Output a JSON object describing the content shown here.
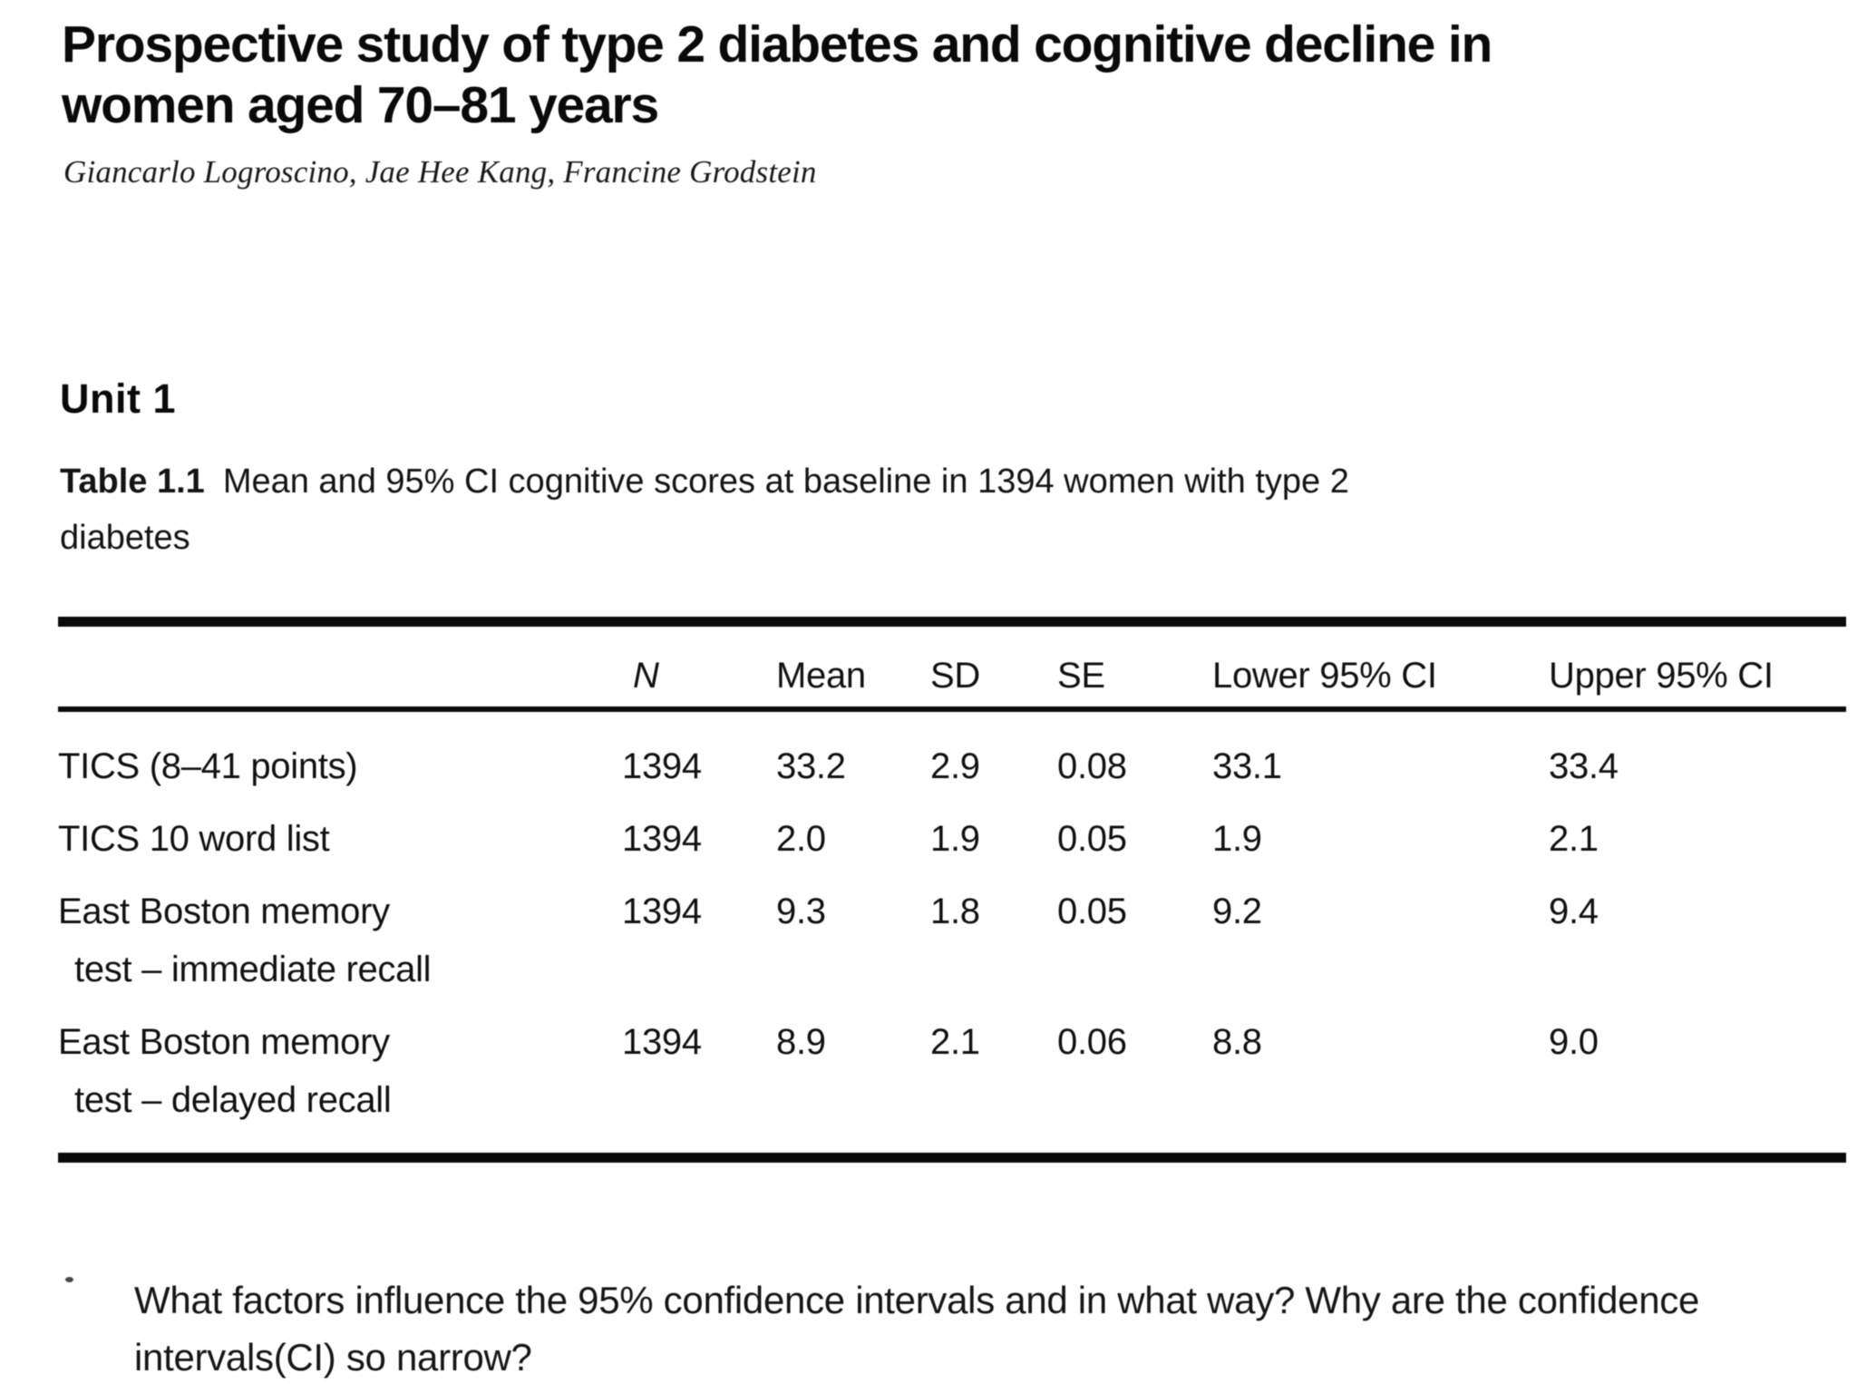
{
  "title_lines": [
    "Prospective study of type 2 diabetes and cognitive decline in",
    "women aged 70–81 years"
  ],
  "authors": "Giancarlo Logroscino, Jae Hee Kang, Francine Grodstein",
  "unit_heading": "Unit 1",
  "table": {
    "caption_label": "Table 1.1",
    "caption_text": "Mean and 95% CI cognitive scores at baseline in 1394 women with type 2 diabetes",
    "columns": [
      "",
      "N",
      "Mean",
      "SD",
      "SE",
      "Lower 95% CI",
      "Upper 95% CI"
    ],
    "rows": [
      {
        "label": "TICS (8–41 points)",
        "label2": "",
        "n": "1394",
        "mean": "33.2",
        "sd": "2.9",
        "se": "0.08",
        "lower": "33.1",
        "upper": "33.4"
      },
      {
        "label": "TICS 10 word list",
        "label2": "",
        "n": "1394",
        "mean": "2.0",
        "sd": "1.9",
        "se": "0.05",
        "lower": "1.9",
        "upper": "2.1"
      },
      {
        "label": "East Boston memory",
        "label2": "test – immediate recall",
        "n": "1394",
        "mean": "9.3",
        "sd": "1.8",
        "se": "0.05",
        "lower": "9.2",
        "upper": "9.4"
      },
      {
        "label": "East Boston memory",
        "label2": "test – delayed recall",
        "n": "1394",
        "mean": "8.9",
        "sd": "2.1",
        "se": "0.06",
        "lower": "8.8",
        "upper": "9.0"
      }
    ]
  },
  "question": {
    "text": "What factors influence the 95% confidence intervals and in what way? Why are the confidence intervals(CI) so narrow?"
  }
}
